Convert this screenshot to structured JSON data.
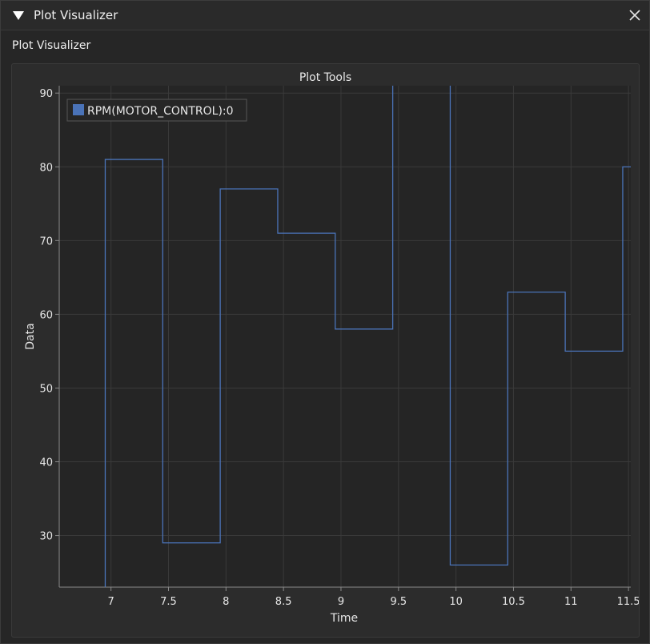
{
  "window": {
    "title": "Plot Visualizer"
  },
  "section_label": "Plot Visualizer",
  "plot": {
    "title": "Plot Tools"
  },
  "chart_data": {
    "type": "line",
    "title": "Plot Tools",
    "xlabel": "Time",
    "ylabel": "Data",
    "xlim": [
      6.55,
      11.52
    ],
    "ylim": [
      23.0,
      91.0
    ],
    "xticks": [
      7,
      7.5,
      8,
      8.5,
      9,
      9.5,
      10,
      10.5,
      11,
      11.5
    ],
    "xtick_labels": [
      "7",
      "7.5",
      "8",
      "8.5",
      "9",
      "9.5",
      "10",
      "10.5",
      "11",
      "11.5"
    ],
    "yticks": [
      30,
      40,
      50,
      60,
      70,
      80,
      90
    ],
    "ytick_labels": [
      "30",
      "40",
      "50",
      "60",
      "70",
      "80",
      "90"
    ],
    "grid": true,
    "legend_position": "top-left",
    "series": [
      {
        "name": "RPM(MOTOR_CONTROL):0",
        "color": "#4a73b8",
        "step": true,
        "x": [
          6.95,
          7.45,
          7.95,
          8.45,
          8.95,
          9.45,
          9.95,
          10.45,
          10.95,
          11.45,
          11.52
        ],
        "values": [
          81,
          29,
          77,
          71,
          58,
          98,
          26,
          63,
          55,
          80,
          80
        ],
        "note_first_y": 23
      }
    ]
  }
}
